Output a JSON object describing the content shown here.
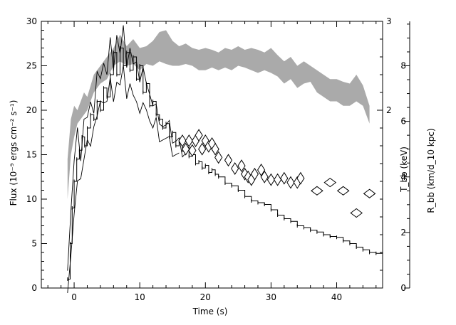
{
  "chart_data": {
    "type": "line",
    "xlabel": "Time (s)",
    "ylabel_left": "Flux (10⁻⁹ ergs cm⁻² s⁻¹)",
    "ylabel_right_inner": "T_bb (keV)",
    "ylabel_right_outer": "R_bb (km/d_10 kpc)",
    "xlim": [
      -5,
      47
    ],
    "ylim_flux": [
      0,
      30
    ],
    "ylim_T": [
      0,
      3
    ],
    "ylim_R": [
      0,
      9.6
    ],
    "x_ticks": [
      0,
      10,
      20,
      30,
      40
    ],
    "flux_ticks": [
      0,
      5,
      10,
      15,
      20,
      25,
      30
    ],
    "T_ticks": [
      2,
      3
    ],
    "R_ticks": [
      0,
      2,
      4,
      6,
      8
    ],
    "colors": {
      "band": "#aaaaaa",
      "line": "#000000",
      "axes": "#000000"
    },
    "series": [
      {
        "kind": "flux_lightcurve",
        "x": [
          -1.0,
          -0.6,
          -0.3,
          0.0,
          0.4,
          0.8,
          1.2,
          1.6,
          2.0,
          2.5,
          3.0,
          3.5,
          4.0,
          4.5,
          5.0,
          5.5,
          6.0,
          6.5,
          7.0,
          7.5,
          8.0,
          8.5,
          9.0,
          9.5,
          10.0,
          10.5,
          11.0,
          11.5,
          12.0,
          12.5,
          13.0,
          13.5,
          14.0,
          14.5,
          15.0,
          15.5,
          16.0,
          16.5,
          17.0,
          17.5,
          18.0,
          18.5,
          19.0,
          19.5,
          20.0,
          20.5,
          21.0,
          21.5,
          22.0,
          23.0,
          24.0,
          25.0,
          26.0,
          27.0,
          28.0,
          29.0,
          30.0,
          31.0,
          32.0,
          33.0,
          34.0,
          35.0,
          36.0,
          37.0,
          38.0,
          39.0,
          40.0,
          41.0,
          42.0,
          43.0,
          44.0,
          45.0,
          46.0
        ],
        "y": [
          1.0,
          5.0,
          9.0,
          12.0,
          14.5,
          15.5,
          17.0,
          16.0,
          18.0,
          19.5,
          19.0,
          21.0,
          20.0,
          22.5,
          21.5,
          24.0,
          26.5,
          24.0,
          27.0,
          25.0,
          26.5,
          24.5,
          26.0,
          23.5,
          25.0,
          22.0,
          23.0,
          20.5,
          21.0,
          19.5,
          19.0,
          18.0,
          18.5,
          17.0,
          17.5,
          16.0,
          16.5,
          15.5,
          15.8,
          14.8,
          15.0,
          14.0,
          14.2,
          13.5,
          13.8,
          13.0,
          13.3,
          12.8,
          12.5,
          11.8,
          11.5,
          11.0,
          10.3,
          9.8,
          9.6,
          9.4,
          8.8,
          8.2,
          7.8,
          7.5,
          7.0,
          6.8,
          6.5,
          6.3,
          6.0,
          5.8,
          5.7,
          5.3,
          5.0,
          4.6,
          4.3,
          4.0,
          3.9
        ]
      },
      {
        "kind": "flux_fine_a",
        "x": [
          -1.0,
          -0.5,
          0.0,
          0.5,
          1.0,
          1.5,
          2.0,
          2.5,
          3.0,
          3.5,
          4.0,
          4.5,
          5.0,
          5.5,
          6.0,
          6.5,
          7.0,
          7.5,
          8.0,
          8.5,
          9.0,
          9.5,
          10.0,
          10.5,
          11.0,
          11.5,
          12.0,
          12.5,
          13.0,
          13.5,
          14.0,
          14.5,
          15.0,
          15.5,
          16.0,
          16.5,
          17.0
        ],
        "y": [
          3.0,
          9.0,
          14.0,
          17.0,
          15.0,
          19.0,
          18.5,
          22.0,
          20.0,
          24.0,
          22.5,
          26.0,
          24.0,
          27.5,
          25.5,
          28.8,
          26.0,
          28.5,
          25.5,
          27.0,
          24.5,
          26.5,
          23.5,
          24.5,
          22.0,
          22.5,
          20.5,
          20.0,
          19.5,
          18.5,
          18.0,
          17.8,
          17.0,
          16.5,
          16.2,
          15.8,
          15.5
        ]
      },
      {
        "kind": "flux_fine_b",
        "x": [
          -1.0,
          -0.5,
          0.0,
          0.5,
          1.0,
          1.5,
          2.0,
          2.5,
          3.0,
          3.5,
          4.0,
          4.5,
          5.0,
          5.5,
          6.0,
          6.5,
          7.0,
          7.5,
          8.0,
          8.5,
          9.0,
          9.5,
          10.0,
          10.5,
          11.0,
          11.5,
          12.0,
          12.5,
          13.0,
          13.5,
          14.0,
          14.5,
          15.0,
          15.5,
          16.0
        ],
        "y": [
          0.5,
          4.0,
          8.0,
          11.0,
          13.0,
          14.5,
          16.0,
          17.0,
          18.5,
          19.0,
          20.0,
          21.5,
          21.0,
          23.0,
          22.0,
          23.5,
          22.5,
          24.0,
          22.0,
          23.0,
          21.0,
          22.0,
          20.0,
          20.5,
          19.0,
          19.5,
          18.0,
          18.5,
          17.5,
          17.0,
          16.5,
          16.0,
          15.5,
          15.0,
          14.5
        ]
      },
      {
        "kind": "temperature_band",
        "x": [
          -1.0,
          -0.5,
          0.0,
          0.5,
          1.0,
          1.5,
          2.0,
          3.0,
          4.0,
          5.0,
          6.0,
          7.0,
          8.0,
          9.0,
          10.0,
          11.0,
          12.0,
          13.0,
          14.0,
          15.0,
          16.0,
          17.0,
          18.0,
          19.0,
          20.0,
          21.0,
          22.0,
          23.0,
          24.0,
          25.0,
          26.0,
          27.0,
          28.0,
          29.0,
          30.0,
          31.0,
          32.0,
          33.0,
          34.0,
          35.0,
          36.0,
          37.0,
          38.0,
          39.0,
          40.0,
          41.0,
          42.0,
          43.0,
          44.0,
          45.0
        ],
        "upper": [
          1.45,
          1.9,
          2.05,
          2.0,
          2.1,
          2.2,
          2.15,
          2.4,
          2.5,
          2.6,
          2.7,
          2.85,
          2.72,
          2.8,
          2.7,
          2.72,
          2.78,
          2.88,
          2.9,
          2.78,
          2.72,
          2.75,
          2.7,
          2.68,
          2.7,
          2.68,
          2.65,
          2.7,
          2.68,
          2.72,
          2.68,
          2.7,
          2.68,
          2.65,
          2.7,
          2.62,
          2.55,
          2.6,
          2.5,
          2.55,
          2.5,
          2.45,
          2.4,
          2.35,
          2.35,
          2.32,
          2.3,
          2.4,
          2.28,
          2.05
        ],
        "lower": [
          1.0,
          1.5,
          1.7,
          1.85,
          1.9,
          1.95,
          2.0,
          2.2,
          2.3,
          2.35,
          2.5,
          2.55,
          2.5,
          2.52,
          2.45,
          2.52,
          2.5,
          2.55,
          2.52,
          2.5,
          2.5,
          2.52,
          2.5,
          2.45,
          2.45,
          2.48,
          2.45,
          2.48,
          2.45,
          2.5,
          2.48,
          2.45,
          2.42,
          2.45,
          2.42,
          2.38,
          2.3,
          2.35,
          2.25,
          2.3,
          2.32,
          2.2,
          2.15,
          2.1,
          2.1,
          2.05,
          2.05,
          2.1,
          2.05,
          1.85
        ]
      },
      {
        "kind": "radius_points",
        "x": [
          16.5,
          17.0,
          17.5,
          18.0,
          18.5,
          19.0,
          19.5,
          20.0,
          20.5,
          21.0,
          21.5,
          22.0,
          23.5,
          24.5,
          25.5,
          26.0,
          26.5,
          27.0,
          27.5,
          28.5,
          29.0,
          30.0,
          31.0,
          32.0,
          33.0,
          34.0,
          34.5,
          37.0,
          39.0,
          41.0,
          43.0,
          45.0
        ],
        "y": [
          5.3,
          5.0,
          5.3,
          4.95,
          5.3,
          5.5,
          5.0,
          5.3,
          5.1,
          5.2,
          5.0,
          4.7,
          4.6,
          4.3,
          4.4,
          4.1,
          4.0,
          3.9,
          4.1,
          4.25,
          4.0,
          3.9,
          3.9,
          3.95,
          3.8,
          3.8,
          3.95,
          3.5,
          3.8,
          3.5,
          2.7,
          3.4
        ]
      }
    ]
  }
}
